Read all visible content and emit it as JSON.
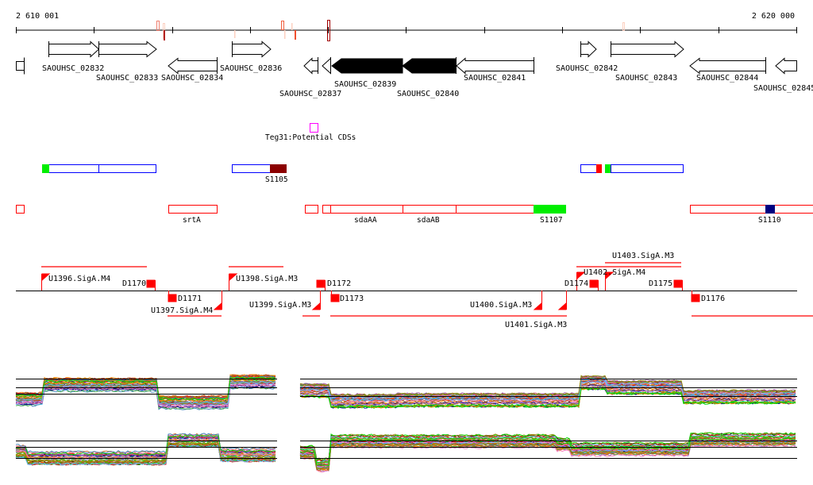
{
  "ruler": {
    "start_label": "2 610 001",
    "end_label": "2 620 000"
  },
  "genes": {
    "g02832": "SAOUHSC_02832",
    "g02833": "SAOUHSC_02833",
    "g02834": "SAOUHSC_02834",
    "g02836": "SAOUHSC_02836",
    "g02837": "SAOUHSC_02837",
    "g02839": "SAOUHSC_02839",
    "g02840": "SAOUHSC_02840",
    "g02841": "SAOUHSC_02841",
    "g02842": "SAOUHSC_02842",
    "g02843": "SAOUHSC_02843",
    "g02844": "SAOUHSC_02844",
    "g02845": "SAOUHSC_02845"
  },
  "teg": {
    "label": "Teg31:Potential CDSs"
  },
  "features": {
    "s1105": "S1105",
    "srtA": "srtA",
    "sdaAA": "sdaAA",
    "sdaAB": "sdaAB",
    "s1107": "S1107",
    "s1110": "S1110"
  },
  "promoters": {
    "u1396": "U1396.SigA.M4",
    "u1397": "U1397.SigA.M4",
    "u1398": "U1398.SigA.M3",
    "u1399": "U1399.SigA.M3",
    "u1400": "U1400.SigA.M3",
    "u1401": "U1401.SigA.M3",
    "u1402": "U1402.SigA.M4",
    "u1403": "U1403.SigA.M3"
  },
  "terminators": {
    "d1170": "D1170",
    "d1171": "D1171",
    "d1172": "D1172",
    "d1173": "D1173",
    "d1174": "D1174",
    "d1175": "D1175",
    "d1176": "D1176"
  },
  "colors": {
    "feature_red": "#ff0000",
    "feature_blue": "#0000ff",
    "green": "#00ee00",
    "dark_red": "#8b0000",
    "navy": "#000080",
    "magenta": "#ff00ff"
  }
}
